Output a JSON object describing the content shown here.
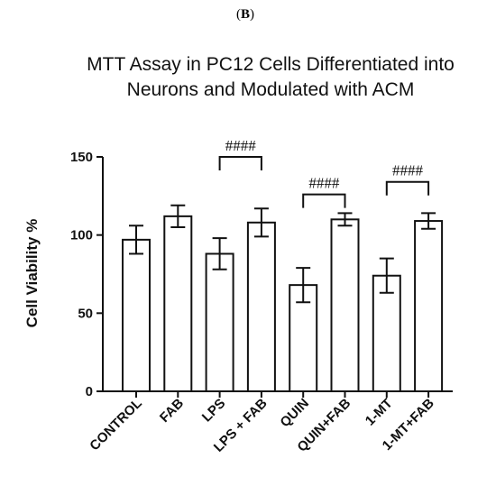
{
  "panel": {
    "label_open": "(",
    "label_letter": "B",
    "label_close": ")"
  },
  "chart_data": {
    "type": "bar",
    "title_lines": [
      "MTT Assay in PC12 Cells Differentiated into",
      "Neurons and Modulated with ACM"
    ],
    "xlabel": "",
    "ylabel": "Cell Viability %",
    "ylim": [
      0,
      150
    ],
    "yticks": [
      0,
      50,
      100,
      150
    ],
    "categories": [
      "CONTROL",
      "FAB",
      "LPS",
      "LPS + FAB",
      "QUIN",
      "QUIN+FAB",
      "1-MT",
      "1-MT+FAB"
    ],
    "values": [
      97,
      112,
      88,
      108,
      68,
      110,
      74,
      109
    ],
    "errors": [
      9,
      7,
      10,
      9,
      11,
      4,
      11,
      5
    ],
    "bar_fill": "#ffffff",
    "bar_stroke": "#111111",
    "grid": false,
    "legend": "none",
    "significance": [
      {
        "from": 2,
        "to": 3,
        "label": "####",
        "level": 150
      },
      {
        "from": 4,
        "to": 5,
        "label": "####",
        "level": 126
      },
      {
        "from": 6,
        "to": 7,
        "label": "####",
        "level": 134
      }
    ]
  }
}
